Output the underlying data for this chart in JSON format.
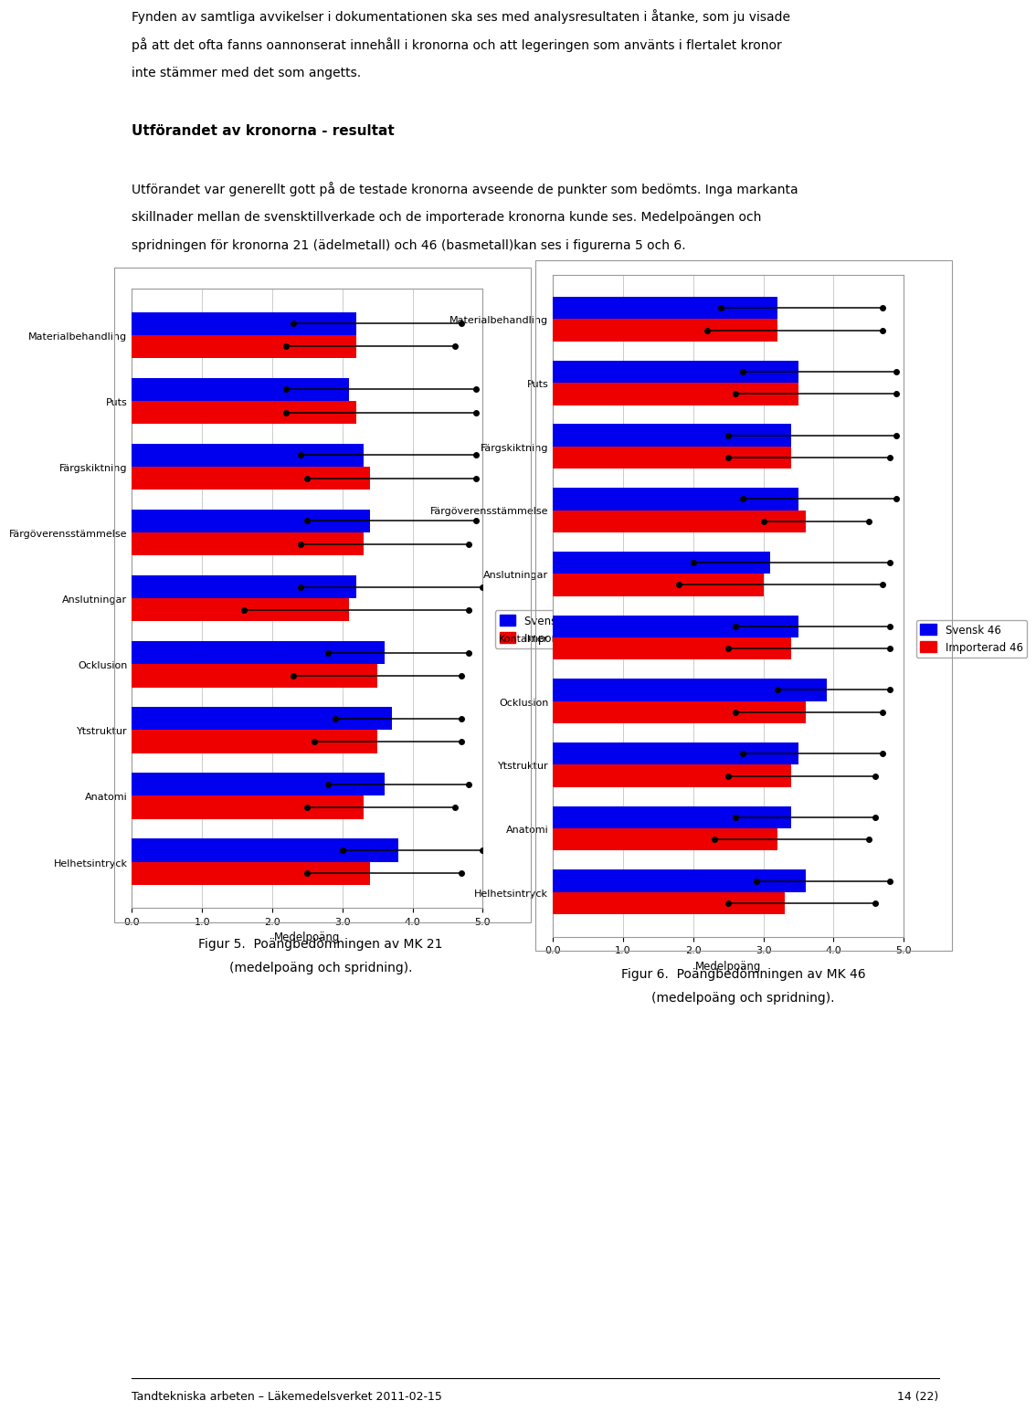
{
  "fig1": {
    "categories": [
      "Helhetsintryck",
      "Anatomi",
      "Ytstruktur",
      "Ocklusion",
      "Anslutningar",
      "Färgöverensstämmelse",
      "Färgskiktning",
      "Puts",
      "Materialbehandling"
    ],
    "swedish_mean": [
      3.8,
      3.6,
      3.7,
      3.6,
      3.2,
      3.4,
      3.3,
      3.1,
      3.2
    ],
    "imported_mean": [
      3.4,
      3.3,
      3.5,
      3.5,
      3.1,
      3.3,
      3.4,
      3.2,
      3.2
    ],
    "swedish_err_lo": [
      0.8,
      0.8,
      0.8,
      0.8,
      0.8,
      0.9,
      0.9,
      0.9,
      0.9
    ],
    "swedish_err_hi": [
      1.2,
      1.2,
      1.0,
      1.2,
      1.8,
      1.5,
      1.6,
      1.8,
      1.5
    ],
    "imported_err_lo": [
      0.9,
      0.8,
      0.9,
      1.2,
      1.5,
      0.9,
      0.9,
      1.0,
      1.0
    ],
    "imported_err_hi": [
      1.3,
      1.3,
      1.2,
      1.2,
      1.7,
      1.5,
      1.5,
      1.7,
      1.4
    ],
    "legend_labels": [
      "Svensk 21",
      "Importerad 21"
    ],
    "xlabel": "Medelpoäng",
    "xlim": [
      0.0,
      5.0
    ],
    "xticks": [
      0.0,
      1.0,
      2.0,
      3.0,
      4.0,
      5.0
    ],
    "bar_color_swedish": "#0000EE",
    "bar_color_imported": "#EE0000"
  },
  "fig2": {
    "categories": [
      "Helhetsintryck",
      "Anatomi",
      "Ytstruktur",
      "Ocklusion",
      "Kontakter",
      "Anslutningar",
      "Färgöverensstämmelse",
      "Färgskiktning",
      "Puts",
      "Materialbehandling"
    ],
    "swedish_mean": [
      3.6,
      3.4,
      3.5,
      3.9,
      3.5,
      3.1,
      3.5,
      3.4,
      3.5,
      3.2
    ],
    "imported_mean": [
      3.3,
      3.2,
      3.4,
      3.6,
      3.4,
      3.0,
      3.6,
      3.4,
      3.5,
      3.2
    ],
    "swedish_err_lo": [
      0.7,
      0.8,
      0.8,
      0.7,
      0.9,
      1.1,
      0.8,
      0.9,
      0.8,
      0.8
    ],
    "swedish_err_hi": [
      1.2,
      1.2,
      1.2,
      0.9,
      1.3,
      1.7,
      1.4,
      1.5,
      1.4,
      1.5
    ],
    "imported_err_lo": [
      0.8,
      0.9,
      0.9,
      1.0,
      0.9,
      1.2,
      0.6,
      0.9,
      0.9,
      1.0
    ],
    "imported_err_hi": [
      1.3,
      1.3,
      1.2,
      1.1,
      1.4,
      1.7,
      0.9,
      1.4,
      1.4,
      1.5
    ],
    "legend_labels": [
      "Svensk 46",
      "Importerad 46"
    ],
    "xlabel": "Medelpoäng",
    "xlim": [
      0.0,
      5.0
    ],
    "xticks": [
      0.0,
      1.0,
      2.0,
      3.0,
      4.0,
      5.0
    ],
    "bar_color_swedish": "#0000EE",
    "bar_color_imported": "#EE0000"
  },
  "top_lines": [
    "Fynden av samtliga avvikelser i dokumentationen ska ses med analysresultaten i åtanke, som ju visade",
    "på att det ofta fanns oannonserat innehåll i kronorna och att legeringen som använts i flertalet kronor",
    "inte stämmer med det som angetts.",
    "",
    "Utförandet av kronorna - resultat",
    "",
    "Utförandet var generellt gott på de testade kronorna avseende de punkter som bedömts. Inga markanta",
    "skillnader mellan de svensktillverkade och de importerade kronorna kunde ses. Medelpoängen och",
    "spridningen för kronorna 21 (ädelmetall) och 46 (basmetall)kan ses i figurerna 5 och 6."
  ],
  "heading_line": "Utförandet av kronorna - resultat",
  "caption1_line1": "Figur 5.  Poängbedömningen av MK 21",
  "caption1_line2": "(medelpoäng och spridning).",
  "caption2_line1": "Figur 6.  Poängbedömningen av MK 46",
  "caption2_line2": "(medelpoäng och spridning).",
  "footer_left": "Tandtekniska arbeten – Läkemedelsverket 2011-02-15",
  "footer_right": "14 (22)",
  "background_color": "#FFFFFF",
  "bar_height": 0.35
}
